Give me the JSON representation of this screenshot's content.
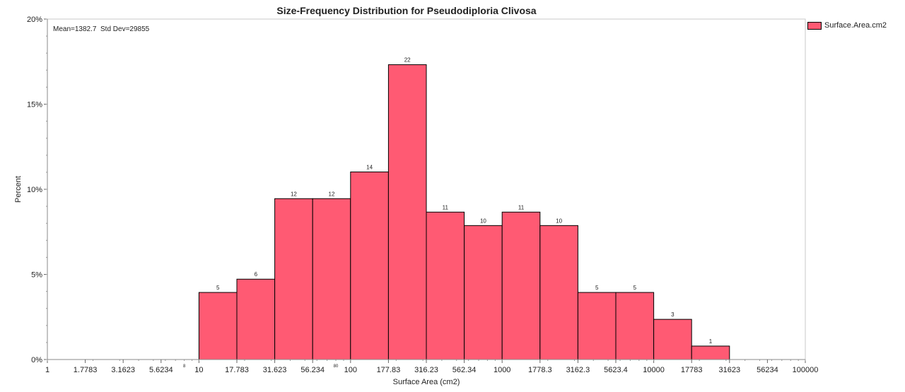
{
  "chart_data": {
    "type": "bar",
    "title": "Size-Frequency Distribution for Pseudodiploria Clivosa",
    "xlabel": "Surface Area (cm2)",
    "ylabel": "Percent",
    "stats_text": "Mean=1382.7  Std Dev=29855",
    "x_scale": "log",
    "xlim": [
      1,
      100000
    ],
    "ylim": [
      0,
      20
    ],
    "yticks": [
      "0%",
      "5%",
      "10%",
      "15%",
      "20%"
    ],
    "xticks": [
      "1",
      "1.7783",
      "3.1623",
      "5.6234",
      "10",
      "17.783",
      "31.623",
      "56.234",
      "100",
      "177.83",
      "316.23",
      "562.34",
      "1000",
      "1778.3",
      "3162.3",
      "5623.4",
      "10000",
      "17783",
      "31623",
      "56234",
      "100000"
    ],
    "small_ticks": [
      "8",
      "80"
    ],
    "bins": [
      {
        "from": 10,
        "to": 17.783,
        "count": 5,
        "percent": 3.94
      },
      {
        "from": 17.783,
        "to": 31.623,
        "count": 6,
        "percent": 4.72
      },
      {
        "from": 31.623,
        "to": 56.234,
        "count": 12,
        "percent": 9.45
      },
      {
        "from": 56.234,
        "to": 100,
        "count": 12,
        "percent": 9.45
      },
      {
        "from": 100,
        "to": 177.83,
        "count": 14,
        "percent": 11.02
      },
      {
        "from": 177.83,
        "to": 316.23,
        "count": 22,
        "percent": 17.32
      },
      {
        "from": 316.23,
        "to": 562.34,
        "count": 11,
        "percent": 8.66
      },
      {
        "from": 562.34,
        "to": 1000,
        "count": 10,
        "percent": 7.87
      },
      {
        "from": 1000,
        "to": 1778.3,
        "count": 11,
        "percent": 8.66
      },
      {
        "from": 1778.3,
        "to": 3162.3,
        "count": 10,
        "percent": 7.87
      },
      {
        "from": 3162.3,
        "to": 5623.4,
        "count": 5,
        "percent": 3.94
      },
      {
        "from": 5623.4,
        "to": 10000,
        "count": 5,
        "percent": 3.94
      },
      {
        "from": 10000,
        "to": 17783,
        "count": 3,
        "percent": 2.36
      },
      {
        "from": 17783,
        "to": 31623,
        "count": 1,
        "percent": 0.79
      }
    ],
    "series": [
      {
        "name": "Surface.Area.cm2",
        "color": "#ff5a73"
      }
    ],
    "legend_position": "top-right",
    "grid": false
  }
}
